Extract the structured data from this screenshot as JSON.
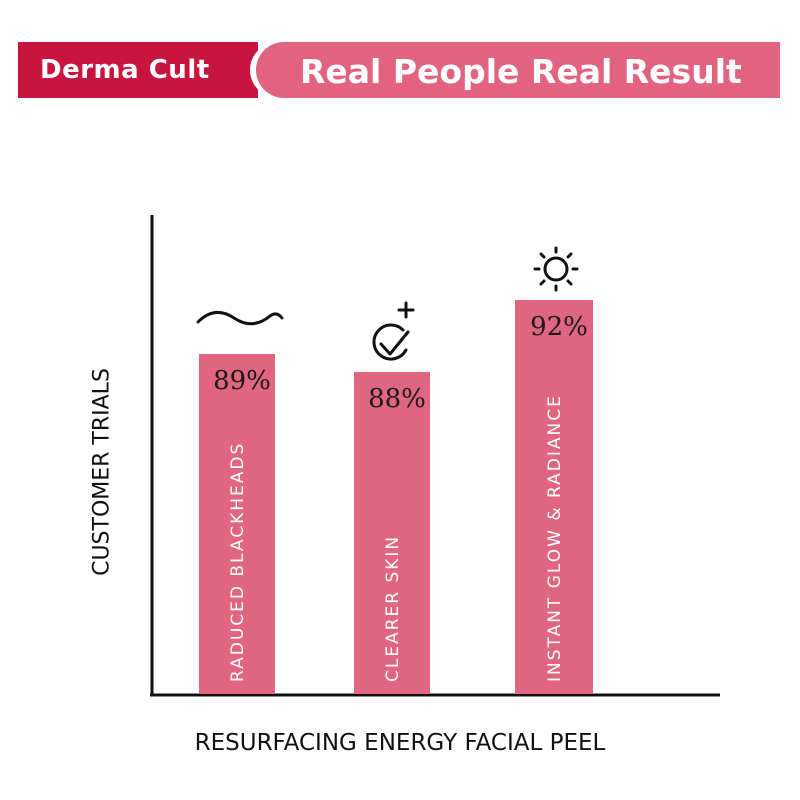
{
  "header": {
    "brand": "Derma Cult",
    "headline": "Real People Real Result"
  },
  "colors": {
    "brand_red": "#c8153f",
    "accent_pink": "#e1637f",
    "bar": "#e0657f"
  },
  "chart_data": {
    "type": "bar",
    "title": "",
    "xlabel": "RESURFACING ENERGY FACIAL PEEL",
    "ylabel": "CUSTOMER TRIALS",
    "categories": [
      "RADUCED BLACKHEADS",
      "CLEARER SKIN",
      "INSTANT GLOW & RADIANCE"
    ],
    "values": [
      89,
      88,
      92
    ],
    "value_labels": [
      "89%",
      "88%",
      "92%"
    ],
    "icons": [
      "wave-icon",
      "check-plus-icon",
      "sun-icon"
    ],
    "grid": false
  }
}
